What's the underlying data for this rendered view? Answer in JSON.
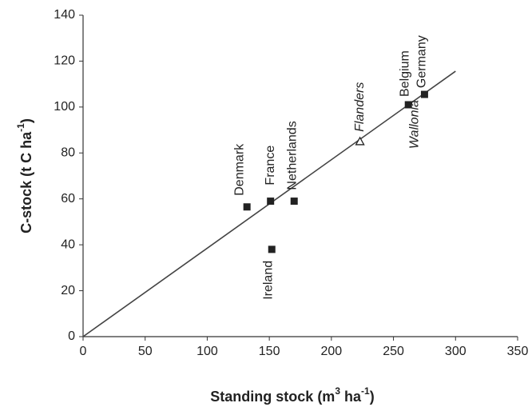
{
  "chart_data": {
    "type": "scatter",
    "x_label": [
      "Standing stock (m",
      "3",
      " ha",
      "-1",
      ")"
    ],
    "y_label": [
      "C-stock (t C ha",
      "-1",
      ")"
    ],
    "xlim": [
      0,
      350
    ],
    "xticks": [
      0,
      50,
      100,
      150,
      200,
      250,
      300,
      350
    ],
    "ylim": [
      0,
      140
    ],
    "yticks": [
      0,
      20,
      40,
      60,
      80,
      100,
      120,
      140
    ],
    "color": "#222222",
    "points": [
      {
        "labels": [
          "Denmark"
        ],
        "x": 132,
        "y": 56.5,
        "marker": "square"
      },
      {
        "labels": [
          "France"
        ],
        "x": 151,
        "y": 59,
        "marker": "square"
      },
      {
        "labels": [
          "Ireland"
        ],
        "x": 152,
        "y": 38,
        "marker": "square"
      },
      {
        "labels": [
          "Netherlands"
        ],
        "x": 170,
        "y": 59,
        "marker": "square"
      },
      {
        "labels": [
          "Flanders"
        ],
        "x": 223,
        "y": 85,
        "marker": "open-triangle"
      },
      {
        "labels": [
          "Belgium"
        ],
        "x": 262,
        "y": 101,
        "marker": "square"
      },
      {
        "labels": [
          "Germany",
          "Wallonia"
        ],
        "x": 275,
        "y": 105.5,
        "marker": "square"
      }
    ],
    "fit_line": {
      "x": [
        0,
        300
      ],
      "y": [
        0,
        115.6
      ]
    }
  }
}
